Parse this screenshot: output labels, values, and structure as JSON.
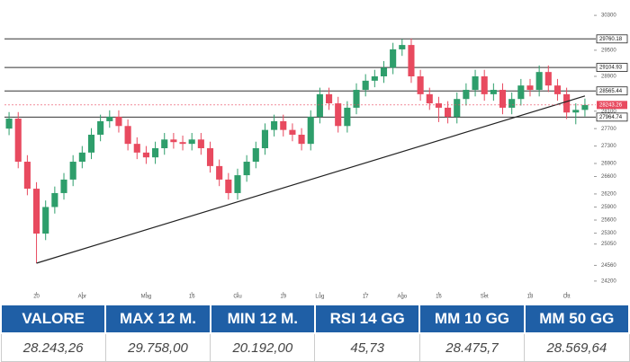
{
  "chart_data": {
    "type": "candlestick",
    "up_color": "#2e9e6b",
    "down_color": "#e84a5f",
    "open": [
      27700,
      27930,
      26940,
      26320,
      25290,
      25900,
      26220,
      26530,
      26940,
      27150,
      27560,
      27870,
      27970,
      27760,
      27350,
      27150,
      27040,
      27250,
      27450,
      27390,
      27350,
      27450,
      27250,
      26840,
      26530,
      26220,
      26630,
      26940,
      27250,
      27670,
      27870,
      27670,
      27560,
      27350,
      27970,
      28490,
      28280,
      27760,
      28180,
      28590,
      28800,
      28900,
      29100,
      29520,
      29620,
      28900,
      28490,
      28280,
      28180,
      27970,
      28380,
      28590,
      28900,
      28490,
      28590,
      28180,
      28380,
      28690,
      28590,
      29000,
      28690,
      28490,
      28070,
      28130
    ],
    "high": [
      28080,
      28080,
      27090,
      26470,
      26050,
      26370,
      26680,
      27090,
      27300,
      27710,
      28020,
      28120,
      28120,
      27910,
      27500,
      27300,
      27400,
      27600,
      27600,
      27540,
      27600,
      27600,
      27400,
      26990,
      26680,
      26780,
      27090,
      27400,
      27820,
      28020,
      28020,
      27820,
      27710,
      28120,
      28640,
      28640,
      28430,
      28330,
      28740,
      28950,
      29050,
      29250,
      29670,
      29760,
      29770,
      29050,
      28640,
      28430,
      28330,
      28530,
      28740,
      29050,
      29050,
      28740,
      28740,
      28530,
      28840,
      28840,
      29150,
      29150,
      28840,
      28640,
      28280,
      28390
    ],
    "low": [
      27550,
      26790,
      26170,
      24610,
      25140,
      25750,
      26070,
      26380,
      26790,
      27000,
      27410,
      27720,
      27610,
      27200,
      27000,
      26890,
      26890,
      27100,
      27240,
      27200,
      27200,
      27100,
      26690,
      26380,
      26070,
      26070,
      26480,
      26790,
      27100,
      27520,
      27520,
      27410,
      27200,
      27200,
      27820,
      28130,
      27610,
      27610,
      28030,
      28440,
      28650,
      28750,
      28950,
      29370,
      28750,
      28340,
      28130,
      27850,
      27820,
      27820,
      28230,
      28440,
      28340,
      28340,
      28030,
      28030,
      28230,
      28440,
      28440,
      28540,
      28340,
      27920,
      27800,
      27980
    ],
    "close": [
      27930,
      26940,
      26320,
      25290,
      25900,
      26220,
      26530,
      26940,
      27150,
      27560,
      27870,
      27970,
      27760,
      27350,
      27150,
      27040,
      27250,
      27450,
      27390,
      27350,
      27450,
      27250,
      26840,
      26530,
      26220,
      26630,
      26940,
      27250,
      27670,
      27870,
      27670,
      27560,
      27350,
      27970,
      28490,
      28280,
      27760,
      28180,
      28590,
      28800,
      28900,
      29100,
      29520,
      29620,
      28900,
      28490,
      28280,
      28180,
      27970,
      28380,
      28590,
      28900,
      28490,
      28590,
      28180,
      28380,
      28690,
      28590,
      29000,
      28690,
      28490,
      28070,
      28130,
      28243.26
    ],
    "xlim": [
      -0.5,
      63.5
    ],
    "xticks": [
      {
        "value": 3,
        "label": "20"
      },
      {
        "value": 8,
        "label": "Apr"
      },
      {
        "value": 15,
        "label": "Mag"
      },
      {
        "value": 20,
        "label": "16"
      },
      {
        "value": 25,
        "label": "Giu"
      },
      {
        "value": 30,
        "label": "19"
      },
      {
        "value": 34,
        "label": "Lug"
      },
      {
        "value": 39,
        "label": "17"
      },
      {
        "value": 43,
        "label": "Ago"
      },
      {
        "value": 47,
        "label": "16"
      },
      {
        "value": 52,
        "label": "Set"
      },
      {
        "value": 57,
        "label": "18"
      },
      {
        "value": 61,
        "label": "Ott"
      }
    ],
    "ylim": [
      23950,
      30550
    ],
    "yticks": [
      30300,
      29500,
      28900,
      28100,
      27700,
      27300,
      26900,
      26600,
      26200,
      25900,
      25600,
      25300,
      25050,
      24560,
      24200
    ],
    "levels": [
      29760.18,
      29104.93,
      28565.44,
      27964.74
    ],
    "trendline": {
      "x": [
        3,
        63
      ],
      "y": [
        24610,
        28450
      ]
    }
  },
  "table": {
    "header": [
      "VALORE",
      "MAX 12 M.",
      "MIN 12 M.",
      "RSI 14 GG",
      "MM 10 GG",
      "MM 50 GG"
    ],
    "row": [
      "28.243,26",
      "29.758,00",
      "20.192,00",
      "45,73",
      "28.475,7",
      "28.569,64"
    ]
  }
}
